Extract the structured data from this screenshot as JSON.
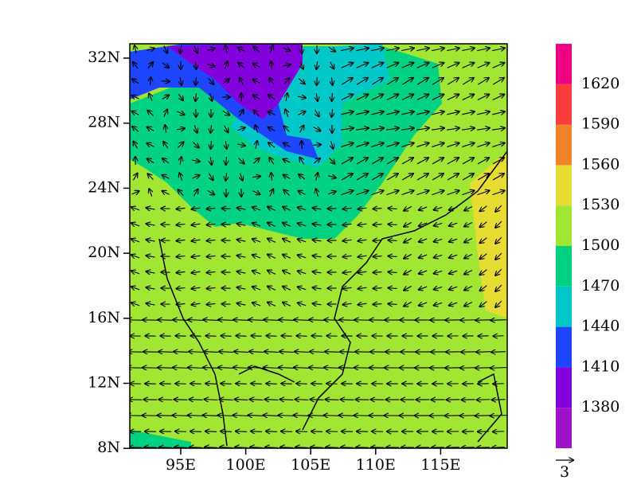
{
  "map": {
    "lat_labels": [
      "32N",
      "28N",
      "24N",
      "20N",
      "16N",
      "12N",
      "8N"
    ],
    "lon_labels": [
      "95E",
      "100E",
      "105E",
      "110E",
      "115E"
    ]
  },
  "colorbar": {
    "labels": [
      "1380",
      "1410",
      "1440",
      "1470",
      "1500",
      "1530",
      "1560",
      "1590",
      "1620"
    ],
    "colors": [
      "#a012c8",
      "#8200dc",
      "#1e46ff",
      "#00c8c8",
      "#00d282",
      "#a0e632",
      "#e6dc32",
      "#f08228",
      "#fa3c3c",
      "#f00082"
    ]
  },
  "vector_ref": "3"
}
